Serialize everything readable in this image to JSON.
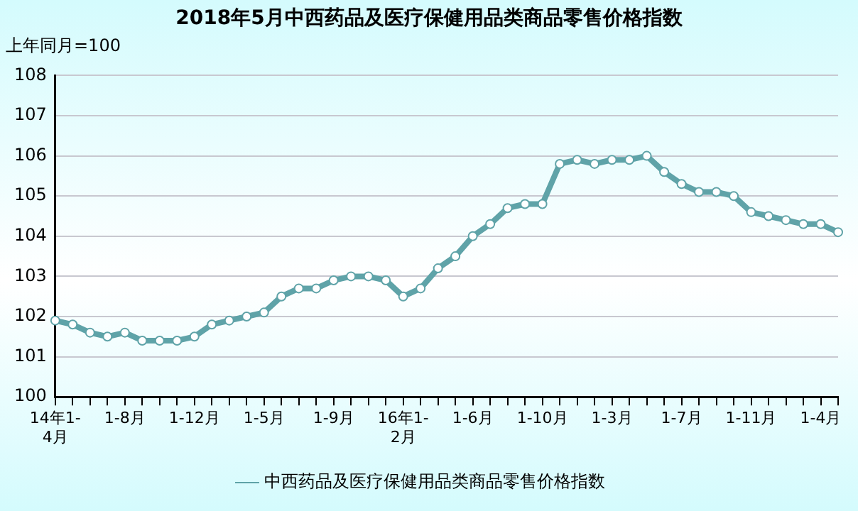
{
  "chart_data": {
    "type": "line",
    "title": "2018年5月中西药品及医疗保健用品类商品零售价格指数",
    "ylabel": "上年同月=100",
    "categories": [
      "14年1-4月",
      null,
      null,
      null,
      "1-8月",
      null,
      null,
      null,
      "1-12月",
      null,
      null,
      null,
      "1-5月",
      null,
      null,
      null,
      "1-9月",
      null,
      null,
      null,
      "16年1-2月",
      null,
      null,
      null,
      "1-6月",
      null,
      null,
      null,
      "1-10月",
      null,
      null,
      null,
      "1-3月",
      null,
      null,
      null,
      "1-7月",
      null,
      null,
      null,
      "1-11月",
      null,
      null,
      null,
      "1-4月",
      null
    ],
    "series": [
      {
        "name": "中西药品及医疗保健用品类商品零售价格指数",
        "color": "#5fa3a8",
        "values": [
          101.9,
          101.8,
          101.6,
          101.5,
          101.6,
          101.4,
          101.4,
          101.4,
          101.5,
          101.8,
          101.9,
          102.0,
          102.1,
          102.5,
          102.7,
          102.7,
          102.9,
          103.0,
          103.0,
          102.9,
          102.5,
          102.7,
          103.2,
          103.5,
          104.0,
          104.3,
          104.7,
          104.8,
          104.8,
          105.8,
          105.9,
          105.8,
          105.9,
          105.9,
          106.0,
          105.6,
          105.3,
          105.1,
          105.1,
          105.0,
          104.6,
          104.5,
          104.4,
          104.3,
          104.3,
          104.1
        ]
      }
    ],
    "ylim": [
      100,
      108
    ],
    "yticks": [
      100,
      101,
      102,
      103,
      104,
      105,
      106,
      107,
      108
    ],
    "grid": "y",
    "legend": "bottom",
    "marker": "circle",
    "line_style": "solid"
  }
}
